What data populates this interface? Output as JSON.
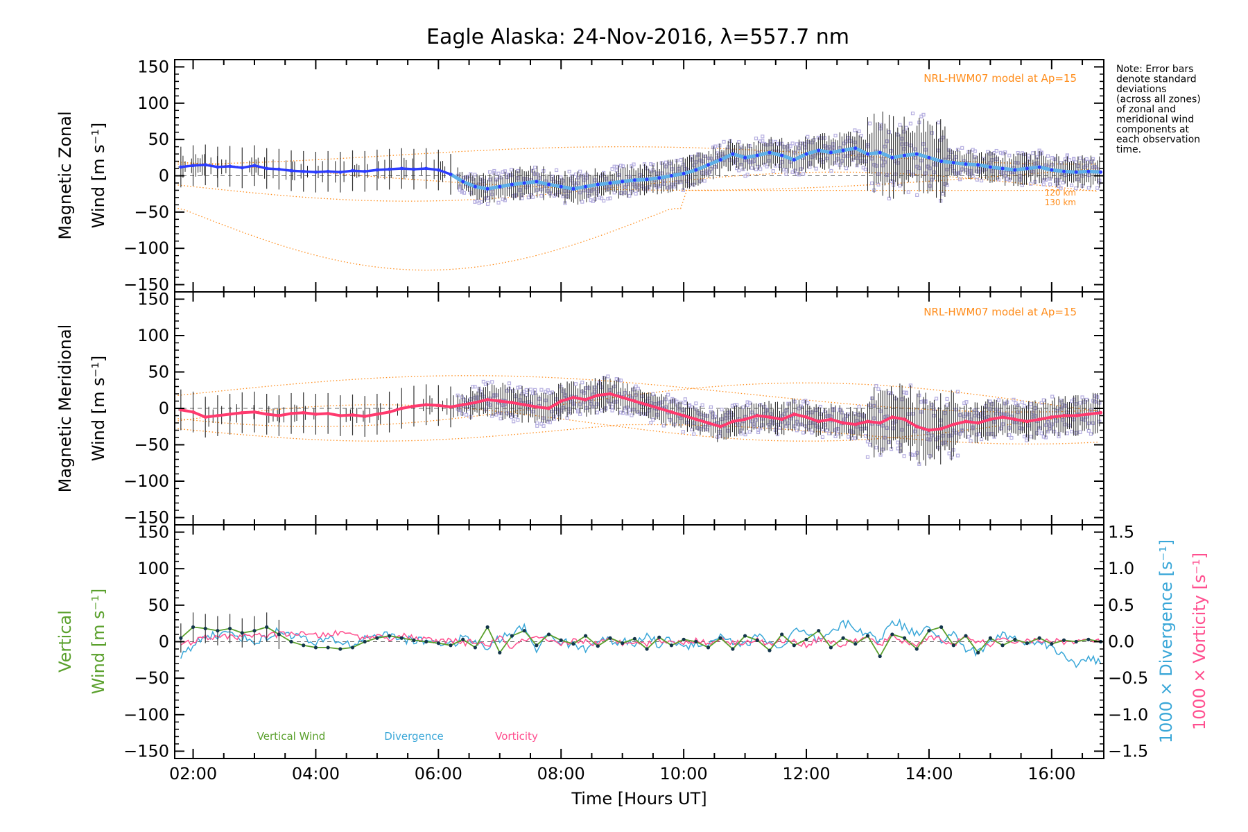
{
  "title": "Eagle Alaska: 24-Nov-2016, λ=557.7 nm",
  "note": {
    "lines": [
      "Note: Error bars",
      "denote standard",
      "deviations",
      "(across all zones)",
      "of zonal and",
      "meridional wind",
      "components at",
      "each observation",
      "time."
    ]
  },
  "colors": {
    "zonal_line": "#2b3cff",
    "zonal_mean": "#5fb0e8",
    "meridional_line": "#ff3a6e",
    "scatter": "#b5aee0",
    "model": "#ff8c1a",
    "vertical": "#5aa02c",
    "divergence": "#3aa7d8",
    "vorticity": "#ff4f8f",
    "dots": "#12354a"
  },
  "chart_data": [
    {
      "type": "line",
      "panel": "zonal",
      "ylabel_line1": "Magnetic Zonal",
      "ylabel_line2": "Wind [m s⁻¹]",
      "annotation": "NRL-HWM07 model at Ap=15",
      "model_labels": [
        "120 km",
        "130 km"
      ],
      "ylim": [
        -160,
        160
      ],
      "yticks": [
        150,
        100,
        50,
        0,
        -50,
        -100,
        -150
      ],
      "xlim": [
        1.7,
        16.85
      ],
      "series": [
        {
          "x": [
            1.8,
            2.0,
            2.2,
            2.4,
            2.6,
            2.8,
            3.0,
            3.2,
            3.4,
            3.6,
            3.8,
            4.0,
            4.2,
            4.4,
            4.6,
            4.8,
            5.0,
            5.2,
            5.4,
            5.6,
            5.8,
            6.0,
            6.2,
            6.4,
            6.6,
            6.8,
            7.0,
            7.2,
            7.4,
            7.6,
            7.8,
            8.0,
            8.2,
            8.4,
            8.6,
            8.8,
            9.0,
            9.2,
            9.4,
            9.6,
            9.8,
            10.0,
            10.2,
            10.4,
            10.6,
            10.8,
            11.0,
            11.2,
            11.4,
            11.6,
            11.8,
            12.0,
            12.2,
            12.4,
            12.6,
            12.8,
            13.0,
            13.2,
            13.4,
            13.6,
            13.8,
            14.0,
            14.2,
            14.4,
            14.6,
            14.8,
            15.0,
            15.2,
            15.4,
            15.6,
            15.8,
            16.0,
            16.2,
            16.4,
            16.6,
            16.8
          ],
          "y": [
            12,
            14,
            15,
            12,
            13,
            11,
            14,
            10,
            9,
            7,
            6,
            5,
            6,
            5,
            7,
            6,
            8,
            9,
            10,
            9,
            10,
            8,
            2,
            -8,
            -15,
            -18,
            -15,
            -12,
            -10,
            -8,
            -12,
            -15,
            -18,
            -15,
            -12,
            -10,
            -8,
            -6,
            -5,
            -3,
            0,
            3,
            8,
            15,
            22,
            30,
            25,
            28,
            32,
            28,
            22,
            30,
            35,
            32,
            35,
            38,
            30,
            32,
            25,
            28,
            30,
            25,
            20,
            18,
            16,
            15,
            12,
            10,
            8,
            10,
            12,
            8,
            6,
            5,
            6,
            5
          ]
        }
      ]
    },
    {
      "type": "line",
      "panel": "meridional",
      "ylabel_line1": "Magnetic Meridional",
      "ylabel_line2": "Wind [m s⁻¹]",
      "annotation": "NRL-HWM07 model at Ap=15",
      "ylim": [
        -160,
        160
      ],
      "yticks": [
        150,
        100,
        50,
        0,
        -50,
        -100,
        -150
      ],
      "xlim": [
        1.7,
        16.85
      ],
      "series": [
        {
          "x": [
            1.8,
            2.0,
            2.2,
            2.4,
            2.6,
            2.8,
            3.0,
            3.2,
            3.4,
            3.6,
            3.8,
            4.0,
            4.2,
            4.4,
            4.6,
            4.8,
            5.0,
            5.2,
            5.4,
            5.6,
            5.8,
            6.0,
            6.2,
            6.4,
            6.6,
            6.8,
            7.0,
            7.2,
            7.4,
            7.6,
            7.8,
            8.0,
            8.2,
            8.4,
            8.6,
            8.8,
            9.0,
            9.2,
            9.4,
            9.6,
            9.8,
            10.0,
            10.2,
            10.4,
            10.6,
            10.8,
            11.0,
            11.2,
            11.4,
            11.6,
            11.8,
            12.0,
            12.2,
            12.4,
            12.6,
            12.8,
            13.0,
            13.2,
            13.4,
            13.6,
            13.8,
            14.0,
            14.2,
            14.4,
            14.6,
            14.8,
            15.0,
            15.2,
            15.4,
            15.6,
            15.8,
            16.0,
            16.2,
            16.4,
            16.6,
            16.8
          ],
          "y": [
            -2,
            -5,
            -12,
            -10,
            -8,
            -6,
            -5,
            -8,
            -10,
            -7,
            -6,
            -8,
            -7,
            -10,
            -9,
            -11,
            -8,
            -5,
            0,
            3,
            5,
            4,
            2,
            5,
            8,
            12,
            10,
            8,
            5,
            2,
            0,
            10,
            15,
            12,
            18,
            20,
            15,
            10,
            5,
            0,
            -5,
            -10,
            -15,
            -20,
            -25,
            -18,
            -15,
            -10,
            -12,
            -15,
            -8,
            -12,
            -18,
            -15,
            -20,
            -22,
            -18,
            -20,
            -12,
            -15,
            -25,
            -30,
            -28,
            -22,
            -18,
            -20,
            -15,
            -12,
            -15,
            -18,
            -15,
            -12,
            -10,
            -10,
            -8,
            -6
          ]
        }
      ]
    },
    {
      "type": "line",
      "panel": "vertical",
      "ylabel_line1": "Vertical",
      "ylabel_line2": "Wind [m s⁻¹]",
      "ylim": [
        -160,
        160
      ],
      "yticks": [
        150,
        100,
        50,
        0,
        -50,
        -100,
        -150
      ],
      "y2lim": [
        -1.6,
        1.6
      ],
      "y2ticks": [
        1.5,
        1.0,
        0.5,
        0.0,
        -0.5,
        -1.0,
        -1.5
      ],
      "y2tick_labels": [
        "1.5",
        "1.0",
        "0.5",
        "0.0",
        "−0.5",
        "−1.0",
        "−1.5"
      ],
      "y2label_div": "1000 × Divergence [s⁻¹]",
      "y2label_vor": "1000 × Vorticity [s⁻¹]",
      "xlim": [
        1.7,
        16.85
      ],
      "xticks": [
        2,
        4,
        6,
        8,
        10,
        12,
        14,
        16
      ],
      "xtick_labels": [
        "02:00",
        "04:00",
        "06:00",
        "08:00",
        "10:00",
        "12:00",
        "14:00",
        "16:00"
      ],
      "xlabel": "Time [Hours UT]",
      "legend": [
        "Vertical Wind",
        "Divergence",
        "Vorticity"
      ],
      "series": [
        {
          "name": "Vertical Wind",
          "x": [
            1.8,
            2.0,
            2.2,
            2.4,
            2.6,
            2.8,
            3.0,
            3.2,
            3.4,
            3.6,
            3.8,
            4.0,
            4.2,
            4.4,
            4.6,
            4.8,
            5.0,
            5.2,
            5.4,
            5.6,
            5.8,
            6.0,
            6.2,
            6.4,
            6.6,
            6.8,
            7.0,
            7.2,
            7.4,
            7.6,
            7.8,
            8.0,
            8.2,
            8.4,
            8.6,
            8.8,
            9.0,
            9.2,
            9.4,
            9.6,
            9.8,
            10.0,
            10.2,
            10.4,
            10.6,
            10.8,
            11.0,
            11.2,
            11.4,
            11.6,
            11.8,
            12.0,
            12.2,
            12.4,
            12.6,
            12.8,
            13.0,
            13.2,
            13.4,
            13.6,
            13.8,
            14.0,
            14.2,
            14.4,
            14.6,
            14.8,
            15.0,
            15.2,
            15.4,
            15.6,
            15.8,
            16.0,
            16.2,
            16.4,
            16.6,
            16.8
          ],
          "y": [
            5,
            20,
            18,
            15,
            18,
            12,
            15,
            20,
            10,
            0,
            -5,
            -8,
            -8,
            -10,
            -8,
            0,
            5,
            8,
            5,
            2,
            0,
            -2,
            -5,
            3,
            -8,
            20,
            -15,
            8,
            15,
            -5,
            10,
            2,
            -3,
            8,
            -6,
            5,
            -2,
            4,
            -10,
            6,
            -5,
            3,
            0,
            -8,
            5,
            -10,
            8,
            2,
            -12,
            10,
            -5,
            3,
            15,
            -8,
            5,
            -3,
            8,
            -20,
            10,
            5,
            -10,
            15,
            20,
            -5,
            8,
            -15,
            5,
            -5,
            3,
            -2,
            5,
            -3,
            2,
            0,
            3,
            0
          ]
        },
        {
          "name": "Divergence",
          "x": [
            1.8,
            2.0,
            2.2,
            2.4,
            2.6,
            2.8,
            3.0,
            3.2,
            3.4,
            3.6,
            3.8,
            4.0,
            4.2,
            4.4,
            4.6,
            4.8,
            5.0,
            5.2,
            5.4,
            5.6,
            5.8,
            6.0,
            6.2,
            6.4,
            6.6,
            6.8,
            7.0,
            7.2,
            7.4,
            7.6,
            7.8,
            8.0,
            8.2,
            8.4,
            8.6,
            8.8,
            9.0,
            9.2,
            9.4,
            9.6,
            9.8,
            10.0,
            10.2,
            10.4,
            10.6,
            10.8,
            11.0,
            11.2,
            11.4,
            11.6,
            11.8,
            12.0,
            12.2,
            12.4,
            12.6,
            12.8,
            13.0,
            13.2,
            13.4,
            13.6,
            13.8,
            14.0,
            14.2,
            14.4,
            14.6,
            14.8,
            15.0,
            15.2,
            15.4,
            15.6,
            15.8,
            16.0,
            16.2,
            16.4,
            16.6,
            16.8
          ],
          "y": [
            -0.2,
            -0.05,
            0.1,
            0.08,
            0.12,
            0.06,
            0.0,
            0.05,
            0.15,
            0.1,
            0.05,
            -0.05,
            0.05,
            0.0,
            -0.05,
            0.05,
            0.1,
            0.08,
            0.05,
            0.0,
            0.02,
            0.0,
            -0.05,
            0.05,
            0.0,
            -0.1,
            0.05,
            0.1,
            0.2,
            -0.1,
            0.1,
            0.0,
            -0.05,
            -0.1,
            0.05,
            0.0,
            0.0,
            -0.05,
            0.1,
            -0.05,
            0.05,
            -0.1,
            0.0,
            -0.05,
            0.1,
            0.0,
            -0.05,
            0.08,
            0.0,
            -0.1,
            0.15,
            0.1,
            0.0,
            0.1,
            0.25,
            0.2,
            0.1,
            0.0,
            0.3,
            0.2,
            0.1,
            0.25,
            0.0,
            0.1,
            -0.1,
            -0.15,
            0.0,
            0.1,
            0.05,
            -0.05,
            0.05,
            -0.1,
            -0.2,
            -0.3,
            -0.2,
            -0.3
          ]
        },
        {
          "name": "Vorticity",
          "x": [
            1.8,
            2.0,
            2.2,
            2.4,
            2.6,
            2.8,
            3.0,
            3.2,
            3.4,
            3.6,
            3.8,
            4.0,
            4.2,
            4.4,
            4.6,
            4.8,
            5.0,
            5.2,
            5.4,
            5.6,
            5.8,
            6.0,
            6.2,
            6.4,
            6.6,
            6.8,
            7.0,
            7.2,
            7.4,
            7.6,
            7.8,
            8.0,
            8.2,
            8.4,
            8.6,
            8.8,
            9.0,
            9.2,
            9.4,
            9.6,
            9.8,
            10.0,
            10.2,
            10.4,
            10.6,
            10.8,
            11.0,
            11.2,
            11.4,
            11.6,
            11.8,
            12.0,
            12.2,
            12.4,
            12.6,
            12.8,
            13.0,
            13.2,
            13.4,
            13.6,
            13.8,
            14.0,
            14.2,
            14.4,
            14.6,
            14.8,
            15.0,
            15.2,
            15.4,
            15.6,
            15.8,
            16.0,
            16.2,
            16.4,
            16.6,
            16.8
          ],
          "y": [
            -0.05,
            0.0,
            0.06,
            0.05,
            0.08,
            0.06,
            0.1,
            0.08,
            0.1,
            0.12,
            0.1,
            0.08,
            0.1,
            0.12,
            0.1,
            0.05,
            0.08,
            0.05,
            0.08,
            0.05,
            0.03,
            0.0,
            0.02,
            -0.02,
            0.0,
            -0.05,
            0.05,
            -0.08,
            0.02,
            0.05,
            0.0,
            -0.05,
            0.02,
            0.0,
            -0.03,
            0.03,
            -0.02,
            0.02,
            -0.04,
            0.03,
            -0.02,
            0.0,
            0.02,
            -0.03,
            0.05,
            -0.02,
            0.0,
            0.03,
            -0.05,
            0.02,
            0.0,
            -0.05,
            0.05,
            0.0,
            -0.05,
            0.02,
            0.05,
            -0.05,
            0.08,
            0.0,
            -0.05,
            0.08,
            0.02,
            -0.03,
            0.05,
            0.0,
            -0.03,
            0.02,
            0.0,
            0.02,
            0.0,
            0.02,
            0.0,
            0.0,
            0.02,
            0.0
          ]
        }
      ]
    }
  ]
}
